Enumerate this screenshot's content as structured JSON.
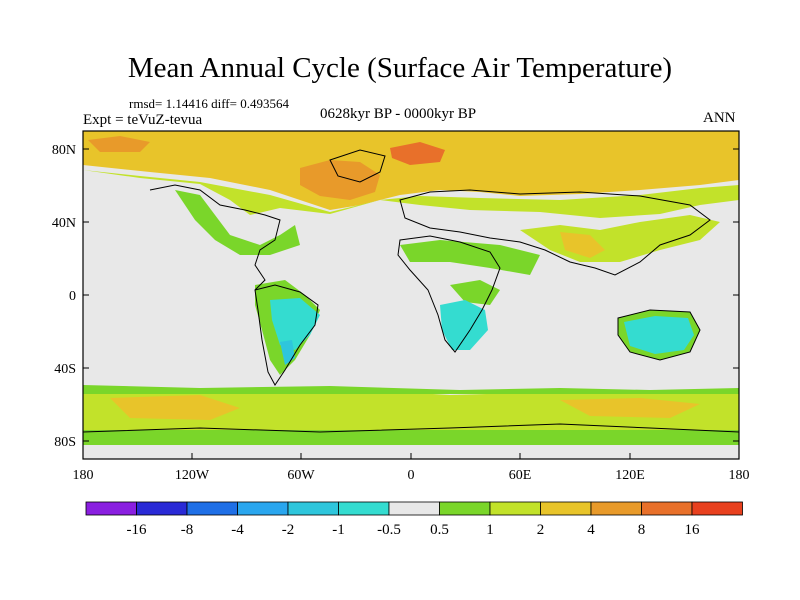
{
  "title": "Mean Annual Cycle (Surface Air Temperature)",
  "stats": "rmsd= 1.14416 diff= 0.493564",
  "experiment": "Expt = teVuZ-tevua",
  "period": "0628kyr BP - 0000kyr BP",
  "season": "ANN",
  "lat_labels": [
    "80N",
    "40N",
    "0",
    "40S",
    "80S"
  ],
  "lon_labels": [
    "180",
    "120W",
    "60W",
    "0",
    "60E",
    "120E",
    "180"
  ],
  "colorbar": {
    "colors": [
      "#8a1fe0",
      "#2a2ad6",
      "#1f6fe6",
      "#2aa6ee",
      "#2ec6dc",
      "#34dcd0",
      "#e8e8e8",
      "#7ad62a",
      "#c2e22a",
      "#e8c42a",
      "#e89a2a",
      "#e8702a",
      "#e8401e"
    ],
    "labels": [
      "-16",
      "-8",
      "-4",
      "-2",
      "-1",
      "-0.5",
      "0.5",
      "1",
      "2",
      "4",
      "8",
      "16"
    ]
  },
  "field_colors": {
    "neutral": "#e8e8e8",
    "light_green": "#7ad62a",
    "yellow_green": "#c2e22a",
    "gold": "#e8c42a",
    "orange": "#e89a2a",
    "red_orange": "#e8702a",
    "cyan": "#34dcd0",
    "blue_cyan": "#2ec6dc",
    "coast": "#000000"
  }
}
